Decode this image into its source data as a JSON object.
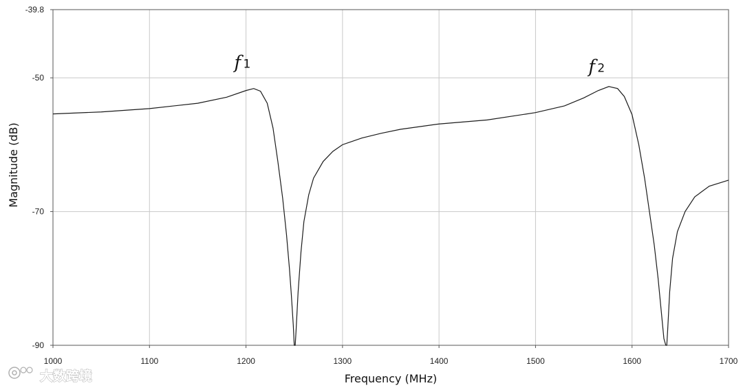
{
  "chart_data": {
    "type": "line",
    "title": "",
    "xlabel": "Frequency (MHz)",
    "ylabel": "Magnitude (dB)",
    "xlim": [
      1000,
      1700
    ],
    "ylim": [
      -90,
      -39.8
    ],
    "x_ticks": [
      1000,
      1100,
      1200,
      1300,
      1400,
      1500,
      1600,
      1700
    ],
    "x_tick_labels": [
      "1000",
      "1100",
      "1200",
      "1300",
      "1400",
      "1500",
      "1600",
      "1700"
    ],
    "y_ticks": [
      -39.8,
      -50,
      -70,
      -90
    ],
    "y_tick_labels": [
      "-39.8",
      "-50",
      "-70",
      "-90"
    ],
    "grid": true,
    "legend": "none",
    "annotations": [
      {
        "main": "f",
        "sub": "1",
        "x": 1195,
        "y": -48.6
      },
      {
        "main": "f",
        "sub": "2",
        "x": 1562,
        "y": -49.2
      }
    ],
    "series": [
      {
        "color": "#1a1a1a",
        "points": [
          [
            1000,
            -55.4
          ],
          [
            1050,
            -55.1
          ],
          [
            1100,
            -54.6
          ],
          [
            1150,
            -53.8
          ],
          [
            1180,
            -52.9
          ],
          [
            1200,
            -51.9
          ],
          [
            1208,
            -51.6
          ],
          [
            1215,
            -52.0
          ],
          [
            1222,
            -53.8
          ],
          [
            1228,
            -57.5
          ],
          [
            1233,
            -62.5
          ],
          [
            1238,
            -68.0
          ],
          [
            1242,
            -73.5
          ],
          [
            1245,
            -78.5
          ],
          [
            1247,
            -82.5
          ],
          [
            1249,
            -87.0
          ],
          [
            1250,
            -90
          ],
          [
            1251,
            -90
          ],
          [
            1252,
            -87.5
          ],
          [
            1254,
            -82.0
          ],
          [
            1257,
            -76.0
          ],
          [
            1260,
            -71.5
          ],
          [
            1265,
            -67.5
          ],
          [
            1270,
            -65.0
          ],
          [
            1280,
            -62.5
          ],
          [
            1290,
            -61.0
          ],
          [
            1300,
            -60.0
          ],
          [
            1320,
            -59.0
          ],
          [
            1340,
            -58.3
          ],
          [
            1360,
            -57.7
          ],
          [
            1400,
            -56.9
          ],
          [
            1450,
            -56.3
          ],
          [
            1500,
            -55.2
          ],
          [
            1530,
            -54.2
          ],
          [
            1550,
            -53.0
          ],
          [
            1565,
            -51.9
          ],
          [
            1576,
            -51.3
          ],
          [
            1585,
            -51.6
          ],
          [
            1592,
            -52.8
          ],
          [
            1600,
            -55.5
          ],
          [
            1607,
            -60.0
          ],
          [
            1613,
            -65.0
          ],
          [
            1618,
            -70.0
          ],
          [
            1623,
            -75.0
          ],
          [
            1627,
            -80.0
          ],
          [
            1630,
            -84.5
          ],
          [
            1633,
            -89.0
          ],
          [
            1635,
            -90
          ],
          [
            1636,
            -90
          ],
          [
            1637,
            -87.5
          ],
          [
            1639,
            -82.0
          ],
          [
            1642,
            -77.0
          ],
          [
            1647,
            -73.0
          ],
          [
            1655,
            -70.0
          ],
          [
            1665,
            -67.8
          ],
          [
            1680,
            -66.2
          ],
          [
            1700,
            -65.3
          ]
        ]
      }
    ]
  },
  "watermark": {
    "logo_text": "大数跨境",
    "icon": "camera-logo-icon"
  }
}
